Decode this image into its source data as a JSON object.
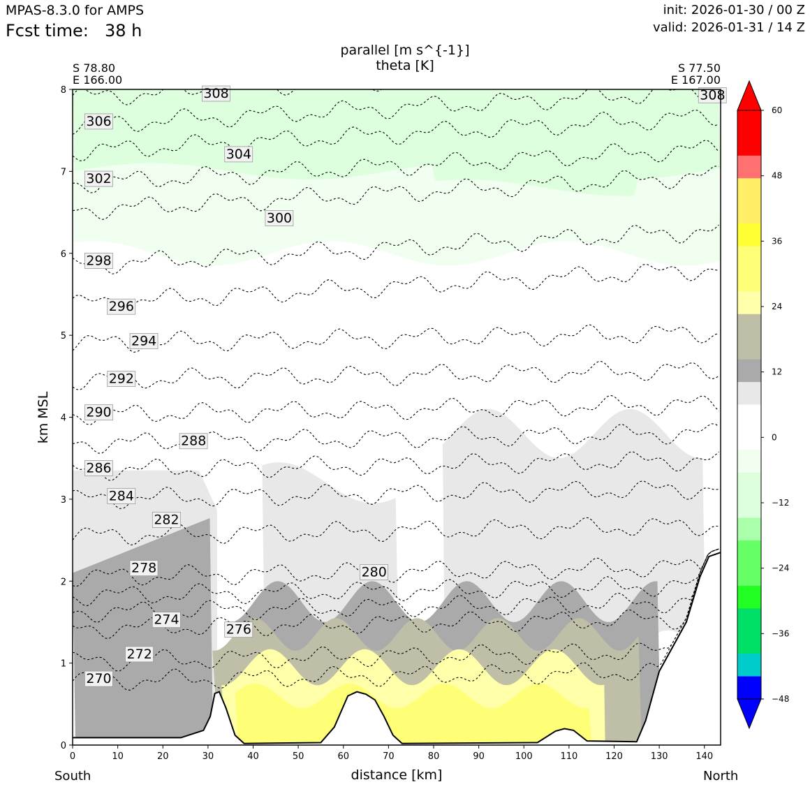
{
  "header": {
    "model": "MPAS-8.3.0 for AMPS",
    "fcst_label": "Fcst time:",
    "fcst_value": "38 h",
    "init": "init: 2026-01-30 / 00 Z",
    "valid": "valid: 2026-01-31 / 14 Z"
  },
  "chart_data": {
    "type": "contour",
    "title": [
      "parallel [m s^{-1}]",
      "theta [K]"
    ],
    "xlabel": "distance [km]",
    "ylabel": "km MSL",
    "xlim": [
      0,
      143.6
    ],
    "ylim": [
      0,
      8
    ],
    "xticks": [
      0,
      10,
      20,
      30,
      40,
      50,
      60,
      70,
      80,
      90,
      100,
      110,
      120,
      130,
      140
    ],
    "yticks": [
      0,
      1,
      2,
      3,
      4,
      5,
      6,
      7,
      8
    ],
    "endpoints": {
      "start": {
        "lat": "S 78.80",
        "lon": "E 166.00",
        "dir": "South"
      },
      "end": {
        "lat": "S 77.50",
        "lon": "E 167.00",
        "dir": "North"
      }
    },
    "terrain": [
      [
        0,
        0.09
      ],
      [
        24,
        0.09
      ],
      [
        29,
        0.18
      ],
      [
        30.5,
        0.35
      ],
      [
        31.5,
        0.63
      ],
      [
        32.5,
        0.65
      ],
      [
        34,
        0.45
      ],
      [
        36,
        0.12
      ],
      [
        38,
        0.02
      ],
      [
        55,
        0.03
      ],
      [
        58,
        0.22
      ],
      [
        61,
        0.6
      ],
      [
        63,
        0.65
      ],
      [
        65,
        0.62
      ],
      [
        67,
        0.55
      ],
      [
        69,
        0.35
      ],
      [
        71,
        0.12
      ],
      [
        73,
        0.02
      ],
      [
        103,
        0.03
      ],
      [
        107,
        0.17
      ],
      [
        109,
        0.2
      ],
      [
        111,
        0.18
      ],
      [
        114,
        0.05
      ],
      [
        125,
        0.04
      ],
      [
        127,
        0.3
      ],
      [
        130,
        0.9
      ],
      [
        133,
        1.2
      ],
      [
        136,
        1.5
      ],
      [
        139,
        2.05
      ],
      [
        141,
        2.3
      ],
      [
        143.6,
        2.35
      ]
    ],
    "wind_fill": {
      "levels": [
        -60,
        -48,
        -44,
        -40,
        -36,
        -32,
        -28,
        -24,
        -20,
        -16,
        -12,
        -8,
        -4,
        0,
        4,
        8,
        12,
        16,
        20,
        24,
        28,
        32,
        36,
        40,
        44,
        48,
        52,
        60
      ],
      "colors": [
        "#0000ff",
        "#00cccc",
        "#00e066",
        "#22ff22",
        "#66ff66",
        "#aaffaa",
        "#ddffdd",
        "#f0fff0",
        "#ffffff",
        "#e8e8e8",
        "#aaaaaa",
        "#bfbfa8",
        "#ffffaa",
        "#ffff77",
        "#ffff33",
        "#ffee66",
        "#ff7070",
        "#ff0000"
      ],
      "colorbar_ticks": [
        60,
        48,
        36,
        24,
        12,
        0,
        -12,
        -24,
        -36,
        -48
      ],
      "colorbar_labels": [
        "60",
        "48",
        "36",
        "24",
        "12",
        "0",
        "−12",
        "−24",
        "−36",
        "−48"
      ]
    },
    "theta_contours": [
      {
        "value": 270,
        "label": "270",
        "y0": 0.78,
        "lx": 3,
        "ly": 0.8
      },
      {
        "value": 272,
        "label": "272",
        "y0": 1.02,
        "lx": 12,
        "ly": 1.1
      },
      {
        "value": 274,
        "label": "274",
        "y0": 1.42,
        "lx": 18,
        "ly": 1.52
      },
      {
        "value": 276,
        "label": "276",
        "y0": 1.62,
        "lx": 34,
        "ly": 1.4
      },
      {
        "value": 278,
        "label": "278",
        "y0": 1.82,
        "lx": 13,
        "ly": 2.15
      },
      {
        "value": 280,
        "label": "280",
        "y0": 2.05,
        "lx": 64,
        "ly": 2.1
      },
      {
        "value": 282,
        "label": "282",
        "y0": 2.55,
        "lx": 18,
        "ly": 2.74
      },
      {
        "value": 284,
        "label": "284",
        "y0": 3.0,
        "lx": 8,
        "ly": 3.03
      },
      {
        "value": 286,
        "label": "286",
        "y0": 3.35,
        "lx": 3,
        "ly": 3.37
      },
      {
        "value": 288,
        "label": "288",
        "y0": 3.68,
        "lx": 24,
        "ly": 3.7
      },
      {
        "value": 290,
        "label": "290",
        "y0": 4.03,
        "lx": 3,
        "ly": 4.05
      },
      {
        "value": 292,
        "label": "292",
        "y0": 4.45,
        "lx": 8,
        "ly": 4.46
      },
      {
        "value": 294,
        "label": "294",
        "y0": 4.9,
        "lx": 13,
        "ly": 4.92
      },
      {
        "value": 296,
        "label": "296",
        "y0": 5.38,
        "lx": 8,
        "ly": 5.34
      },
      {
        "value": 298,
        "label": "298",
        "y0": 5.85,
        "lx": 3,
        "ly": 5.9
      },
      {
        "value": 300,
        "label": "300",
        "y0": 6.52,
        "lx": 43,
        "ly": 6.42
      },
      {
        "value": 302,
        "label": "302",
        "y0": 6.85,
        "lx": 3,
        "ly": 6.9
      },
      {
        "value": 304,
        "label": "304",
        "y0": 7.24,
        "lx": 34,
        "ly": 7.2
      },
      {
        "value": 306,
        "label": "306",
        "y0": 7.56,
        "lx": 3,
        "ly": 7.6
      },
      {
        "value": 308,
        "label": "308",
        "y0": 7.9,
        "lx": 29,
        "ly": 7.94
      },
      {
        "value": 308,
        "label": "308",
        "y0": 7.9,
        "lx": 139,
        "ly": 7.92
      }
    ]
  }
}
